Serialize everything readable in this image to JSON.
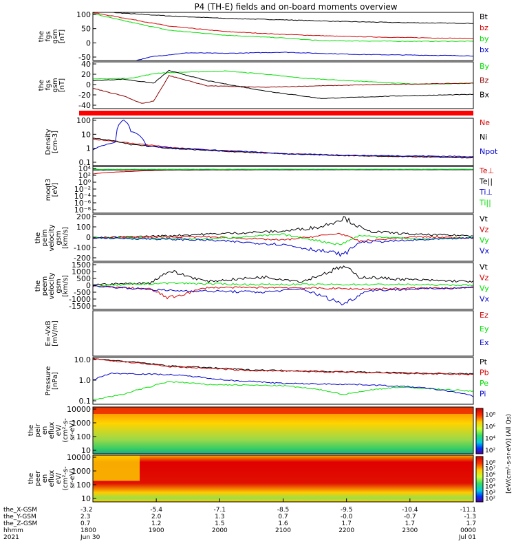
{
  "title": "P4 (TH-E) fields and on-board moments overview",
  "colors": {
    "black": "#000000",
    "red": "#d40000",
    "green": "#00e000",
    "blue": "#0000cc",
    "darkred": "#8b0000"
  },
  "panels": [
    {
      "id": "fgs_gsm",
      "ylabel": [
        "the",
        "fgs",
        "gsm",
        "[nT]"
      ],
      "ylim": [
        -70,
        105
      ],
      "ticks": [
        "100",
        "50",
        "0",
        "-50"
      ],
      "legend": [
        {
          "text": "Bt",
          "color": "#000000"
        },
        {
          "text": "bz",
          "color": "#d40000"
        },
        {
          "text": "by",
          "color": "#00e000"
        },
        {
          "text": "bx",
          "color": "#0000cc"
        }
      ]
    },
    {
      "id": "fgs_dsl",
      "ylabel": [
        "the",
        "fgs",
        "gsm",
        "[nT]"
      ],
      "ylim": [
        -50,
        42
      ],
      "ticks": [
        "40",
        "20",
        "0",
        "-20",
        "-40"
      ],
      "legend": [
        {
          "text": "By",
          "color": "#00e000"
        },
        {
          "text": "Bz",
          "color": "#8b0000"
        },
        {
          "text": "Bx",
          "color": "#000000"
        }
      ]
    },
    {
      "id": "density",
      "ylabel": [
        "Density",
        "[cm-3]"
      ],
      "ylim": [
        0.05,
        200
      ],
      "log": true,
      "ticks": [
        "100",
        "10",
        "1",
        "0.1"
      ],
      "legend": [
        {
          "text": "Ne",
          "color": "#d40000"
        },
        {
          "text": "Ni",
          "color": "#000000"
        },
        {
          "text": "Npot",
          "color": "#0000cc"
        }
      ]
    },
    {
      "id": "temperature",
      "ylabel": [
        "moqt3",
        "[eV]"
      ],
      "ylim": [
        1e-09,
        100000.0
      ],
      "log": true,
      "ticks": [
        "10⁴",
        "10²",
        "10⁰",
        "10⁻²",
        "10⁻⁴",
        "10⁻⁶",
        "10⁻⁸"
      ],
      "legend": [
        {
          "text": "Te⊥",
          "color": "#d40000"
        },
        {
          "text": "Te||",
          "color": "#000000"
        },
        {
          "text": "Ti⊥",
          "color": "#0000cc"
        },
        {
          "text": "Ti||",
          "color": "#00e000"
        }
      ]
    },
    {
      "id": "peim_velocity",
      "ylabel": [
        "the",
        "peim",
        "velocity",
        "gsm",
        "[km/s]"
      ],
      "ylim": [
        -210,
        210
      ],
      "ticks": [
        "200",
        "100",
        "0",
        "-100",
        "-200"
      ],
      "legend": [
        {
          "text": "Vt",
          "color": "#000000"
        },
        {
          "text": "Vz",
          "color": "#d40000"
        },
        {
          "text": "Vy",
          "color": "#00e000"
        },
        {
          "text": "Vx",
          "color": "#0000cc"
        }
      ]
    },
    {
      "id": "peem_velocity",
      "ylabel": [
        "the",
        "peem",
        "velocity",
        "gsm",
        "[km/s]"
      ],
      "ylim": [
        -1550,
        1550
      ],
      "ticks": [
        "1500",
        "1000",
        "500",
        "0",
        "-500",
        "-1000",
        "-1500"
      ],
      "legend": [
        {
          "text": "Vt",
          "color": "#000000"
        },
        {
          "text": "Vz",
          "color": "#d40000"
        },
        {
          "text": "Vy",
          "color": "#00e000"
        },
        {
          "text": "Vx",
          "color": "#0000cc"
        }
      ]
    },
    {
      "id": "efield",
      "ylabel": [
        "E=-VxB",
        "[mV/m]"
      ],
      "ylim": [
        0,
        1
      ],
      "ticks": [],
      "legend": [
        {
          "text": "Ez",
          "color": "#d40000"
        },
        {
          "text": "Ey",
          "color": "#00e000"
        },
        {
          "text": "Ex",
          "color": "#0000cc"
        }
      ]
    },
    {
      "id": "pressure",
      "ylabel": [
        "Pressure",
        "[nPa]"
      ],
      "ylim": [
        0.03,
        10
      ],
      "log": true,
      "ticks": [
        "10.0",
        "1.0",
        "0.1"
      ],
      "legend": [
        {
          "text": "Pt",
          "color": "#000000"
        },
        {
          "text": "Pb",
          "color": "#d40000"
        },
        {
          "text": "Pe",
          "color": "#00e000"
        },
        {
          "text": "Pi",
          "color": "#0000cc"
        }
      ]
    },
    {
      "id": "peir_eflux",
      "ylabel": [
        "the",
        "peir",
        "en",
        "eflux",
        "eV/",
        "(cm²-s-",
        "sr-eV)"
      ],
      "ylim": [
        5,
        20000
      ],
      "log": true,
      "ticks": [
        "10000",
        "1000",
        "100",
        "10"
      ],
      "spectrogram": true
    },
    {
      "id": "peer_eflux",
      "ylabel": [
        "the",
        "peer",
        "en",
        "eflux",
        "eV/",
        "(cm²-s-",
        "sr-eV)"
      ],
      "ylim": [
        5,
        20000
      ],
      "log": true,
      "ticks": [
        "10000",
        "1000",
        "100",
        "10"
      ],
      "spectrogram": true
    }
  ],
  "colorbar": {
    "label": "[eV/(cm²-s-sr-eV)] (All Qs)",
    "upper_ticks": [
      "10⁸",
      "10⁶",
      "10⁴",
      "10²"
    ],
    "lower_ticks": [
      "10⁸",
      "10⁷",
      "10⁶",
      "10⁵",
      "10⁴",
      "10³",
      "10²"
    ]
  },
  "chart_data": {
    "type": "line",
    "title": "P4 (TH-E) fields and on-board moments overview",
    "x_range": [
      "2021-06-30 18:00",
      "2021-07-01 00:00"
    ],
    "x_axis": {
      "row_labels": [
        "the_X-GSM",
        "the_Y-GSM",
        "the_Z-GSM",
        "hhmm",
        "2021"
      ],
      "ticks": [
        {
          "x": "-3.2",
          "y": "2.3",
          "z": "0.7",
          "hhmm": "1800",
          "date": "Jun 30"
        },
        {
          "x": "-5.4",
          "y": "2.0",
          "z": "1.2",
          "hhmm": "1900",
          "date": ""
        },
        {
          "x": "-7.1",
          "y": "1.3",
          "z": "1.5",
          "hhmm": "2000",
          "date": ""
        },
        {
          "x": "-8.5",
          "y": "0.7",
          "z": "1.6",
          "hhmm": "2100",
          "date": ""
        },
        {
          "x": "-9.5",
          "y": "-0.0",
          "z": "1.7",
          "hhmm": "2200",
          "date": ""
        },
        {
          "x": "-10.4",
          "y": "-0.7",
          "z": "1.7",
          "hhmm": "2300",
          "date": ""
        },
        {
          "x": "-11.1",
          "y": "-1.3",
          "z": "1.7",
          "hhmm": "0000",
          "date": "Jul 01"
        }
      ]
    },
    "series": {
      "fgs_gsm": [
        {
          "name": "Bt",
          "color": "#000000",
          "t": [
            0,
            0.08,
            0.2,
            0.35,
            0.5,
            0.65,
            0.8,
            1
          ],
          "v": [
            110,
            102,
            92,
            83,
            78,
            72,
            68,
            65
          ]
        },
        {
          "name": "bz",
          "color": "#d40000",
          "t": [
            0,
            0.1,
            0.2,
            0.35,
            0.5,
            0.65,
            0.8,
            1
          ],
          "v": [
            104,
            80,
            55,
            35,
            25,
            18,
            14,
            10
          ]
        },
        {
          "name": "by",
          "color": "#00e000",
          "t": [
            0,
            0.08,
            0.2,
            0.35,
            0.5,
            0.6,
            0.8,
            1
          ],
          "v": [
            100,
            75,
            40,
            22,
            12,
            2,
            0,
            0
          ]
        },
        {
          "name": "bx",
          "color": "#0000cc",
          "t": [
            0,
            0.05,
            0.1,
            0.16,
            0.25,
            0.35,
            0.5,
            0.7,
            1
          ],
          "v": [
            -75,
            -78,
            -74,
            -55,
            -42,
            -44,
            -40,
            -48,
            -53
          ]
        }
      ],
      "fgs_dsl": [
        {
          "name": "By",
          "color": "#00e000",
          "t": [
            0,
            0.1,
            0.17,
            0.25,
            0.35,
            0.45,
            0.55,
            0.7,
            0.85,
            1
          ],
          "v": [
            8,
            10,
            20,
            22,
            24,
            18,
            10,
            4,
            -2,
            0
          ]
        },
        {
          "name": "Bz",
          "color": "#8b0000",
          "t": [
            0,
            0.08,
            0.13,
            0.16,
            0.2,
            0.3,
            0.45,
            0.6,
            0.8,
            1
          ],
          "v": [
            -10,
            -25,
            -40,
            -35,
            15,
            -5,
            -8,
            -5,
            -2,
            0
          ]
        },
        {
          "name": "Bx",
          "color": "#000000",
          "t": [
            0,
            0.08,
            0.16,
            0.2,
            0.3,
            0.45,
            0.6,
            0.8,
            1
          ],
          "v": [
            5,
            8,
            0,
            25,
            5,
            -15,
            -30,
            -25,
            -22
          ]
        }
      ],
      "density": [
        {
          "name": "Ne",
          "color": "#d40000",
          "t": [
            0,
            0.1,
            0.2,
            0.35,
            0.5,
            0.65,
            0.8,
            1
          ],
          "v": [
            5,
            2.5,
            1.2,
            0.6,
            0.4,
            0.3,
            0.25,
            0.2
          ]
        },
        {
          "name": "Ni",
          "color": "#000000",
          "t": [
            0,
            0.05,
            0.1,
            0.2,
            0.35,
            0.5,
            0.65,
            0.8,
            1
          ],
          "v": [
            6,
            4,
            2,
            1.0,
            0.6,
            0.4,
            0.3,
            0.25,
            0.2
          ]
        },
        {
          "name": "Npot",
          "color": "#0000cc",
          "t": [
            0,
            0.06,
            0.08,
            0.1,
            0.14,
            0.2,
            0.3,
            0.5,
            0.7,
            1
          ],
          "v": [
            0.8,
            3,
            150,
            20,
            1.5,
            1.2,
            0.8,
            0.4,
            0.3,
            0.25
          ]
        }
      ],
      "temperature": [
        {
          "name": "Te⊥",
          "color": "#d40000",
          "t": [
            0,
            0.1,
            0.2,
            0.4,
            0.7,
            1
          ],
          "v": [
            500,
            3000,
            8000,
            9000,
            10000,
            10000
          ]
        },
        {
          "name": "Te||",
          "color": "#000000",
          "t": [
            0,
            0.2,
            0.5,
            1
          ],
          "v": [
            8000,
            9000,
            10000,
            10000
          ]
        },
        {
          "name": "Ti⊥",
          "color": "#0000cc",
          "t": [
            0,
            0.5,
            1
          ],
          "v": [
            12000,
            13000,
            13000
          ]
        },
        {
          "name": "Ti||",
          "color": "#00e000",
          "t": [
            0,
            0.5,
            1
          ],
          "v": [
            12000,
            13000,
            13000
          ]
        }
      ],
      "peim_velocity": [
        {
          "name": "Vt",
          "color": "#000000",
          "t": [
            0,
            0.2,
            0.35,
            0.5,
            0.6,
            0.66,
            0.72,
            0.85,
            1
          ],
          "v": [
            0,
            20,
            40,
            60,
            100,
            180,
            60,
            30,
            20
          ]
        },
        {
          "name": "Vz",
          "color": "#d40000",
          "t": [
            0,
            0.3,
            0.5,
            0.65,
            0.7,
            0.85,
            1
          ],
          "v": [
            0,
            10,
            -20,
            40,
            -30,
            10,
            0
          ]
        },
        {
          "name": "Vy",
          "color": "#00e000",
          "t": [
            0,
            0.3,
            0.5,
            0.65,
            0.7,
            0.85,
            1
          ],
          "v": [
            0,
            -10,
            30,
            -60,
            20,
            -10,
            0
          ]
        },
        {
          "name": "Vx",
          "color": "#0000cc",
          "t": [
            0,
            0.3,
            0.5,
            0.66,
            0.7,
            0.85,
            1
          ],
          "v": [
            0,
            -20,
            -60,
            -150,
            -40,
            -20,
            0
          ]
        }
      ],
      "peem_velocity": [
        {
          "name": "Vt",
          "color": "#000000",
          "t": [
            0,
            0.15,
            0.2,
            0.3,
            0.45,
            0.55,
            0.66,
            0.7,
            0.85,
            1
          ],
          "v": [
            100,
            200,
            1000,
            300,
            600,
            300,
            1300,
            600,
            400,
            300
          ]
        },
        {
          "name": "Vz",
          "color": "#d40000",
          "t": [
            0,
            0.15,
            0.2,
            0.3,
            0.5,
            0.7,
            1
          ],
          "v": [
            0,
            -200,
            -800,
            -100,
            -100,
            -200,
            -100
          ]
        },
        {
          "name": "Vy",
          "color": "#00e000",
          "t": [
            0,
            0.2,
            0.4,
            0.6,
            0.8,
            1
          ],
          "v": [
            0,
            200,
            100,
            100,
            100,
            50
          ]
        },
        {
          "name": "Vx",
          "color": "#0000cc",
          "t": [
            0,
            0.2,
            0.45,
            0.55,
            0.66,
            0.72,
            0.85,
            1
          ],
          "v": [
            0,
            -300,
            -400,
            -200,
            -1200,
            -300,
            -200,
            -100
          ]
        }
      ],
      "pressure": [
        {
          "name": "Pt",
          "color": "#000000",
          "t": [
            0,
            0.05,
            0.2,
            0.4,
            0.6,
            0.8,
            1
          ],
          "v": [
            9,
            7,
            3.5,
            2.2,
            1.8,
            1.5,
            1.3
          ]
        },
        {
          "name": "Pb",
          "color": "#d40000",
          "t": [
            0,
            0.05,
            0.2,
            0.4,
            0.6,
            0.8,
            1
          ],
          "v": [
            9,
            6.5,
            3.2,
            2.0,
            1.7,
            1.4,
            1.2
          ]
        },
        {
          "name": "Pe",
          "color": "#00e000",
          "t": [
            0,
            0.08,
            0.15,
            0.2,
            0.3,
            0.5,
            0.66,
            0.8,
            1
          ],
          "v": [
            0.05,
            0.1,
            0.25,
            0.5,
            0.35,
            0.3,
            0.1,
            0.25,
            0.15
          ]
        },
        {
          "name": "Pi",
          "color": "#0000cc",
          "t": [
            0,
            0.05,
            0.2,
            0.35,
            0.5,
            0.7,
            0.85,
            1
          ],
          "v": [
            0.6,
            1.4,
            1.2,
            0.6,
            0.4,
            0.35,
            0.25,
            0.08
          ]
        }
      ]
    }
  }
}
